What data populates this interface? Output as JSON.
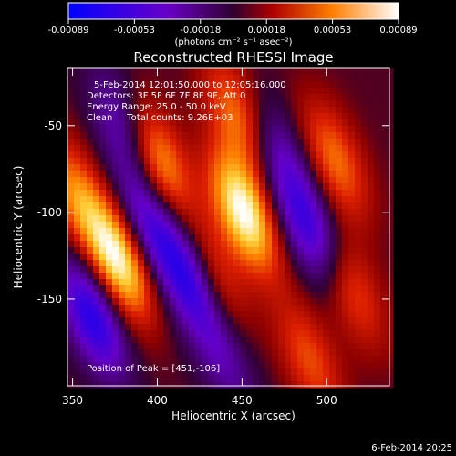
{
  "chart_data": {
    "type": "heatmap",
    "title": "Reconstructed RHESSI Image",
    "xlabel": "Heliocentric X (arcsec)",
    "ylabel": "Heliocentric Y (arcsec)",
    "xlim": [
      347,
      537
    ],
    "ylim": [
      -200,
      -17
    ],
    "x_ticks": [
      350,
      400,
      450,
      500
    ],
    "y_ticks": [
      -50,
      -100,
      -150
    ],
    "grid": false,
    "colorbar": {
      "range": [
        -0.00089,
        0.00089
      ],
      "ticks": [
        "-0.00089",
        "-0.00053",
        "-0.00018",
        "0.00018",
        "0.00053",
        "0.00089"
      ],
      "units": "(photons cm⁻² s⁻¹ asec⁻²)"
    },
    "annotations": [
      "5-Feb-2014 12:01:50.000 to 12:05:16.000",
      "Detectors: 3F 5F 6F 7F 8F 9F, Att 0",
      "Energy Range: 25.0 - 50.0 keV",
      "Clean     Total counts: 9.26E+03"
    ],
    "peak_label": "Position of Peak = [451,-106]",
    "peak": [
      451,
      -106
    ],
    "blobs": [
      {
        "x": 451,
        "y": -100,
        "value": 1.0
      },
      {
        "x": 377,
        "y": -128,
        "value": 0.95
      },
      {
        "x": 400,
        "y": -70,
        "value": 0.75
      },
      {
        "x": 448,
        "y": -45,
        "value": 0.6
      },
      {
        "x": 432,
        "y": -138,
        "value": 0.55
      },
      {
        "x": 505,
        "y": -70,
        "value": 0.55
      },
      {
        "x": 515,
        "y": -145,
        "value": 0.45
      },
      {
        "x": 490,
        "y": -185,
        "value": 0.45
      },
      {
        "x": 352,
        "y": -90,
        "value": 0.55
      },
      {
        "x": 420,
        "y": -138,
        "value": -0.85
      },
      {
        "x": 362,
        "y": -160,
        "value": -0.8
      },
      {
        "x": 395,
        "y": -105,
        "value": -0.55
      },
      {
        "x": 490,
        "y": -110,
        "value": -0.65
      },
      {
        "x": 470,
        "y": -65,
        "value": -0.45
      },
      {
        "x": 380,
        "y": -50,
        "value": -0.5
      },
      {
        "x": 440,
        "y": -185,
        "value": -0.35
      }
    ]
  },
  "footer_date": "6-Feb-2014 20:25"
}
